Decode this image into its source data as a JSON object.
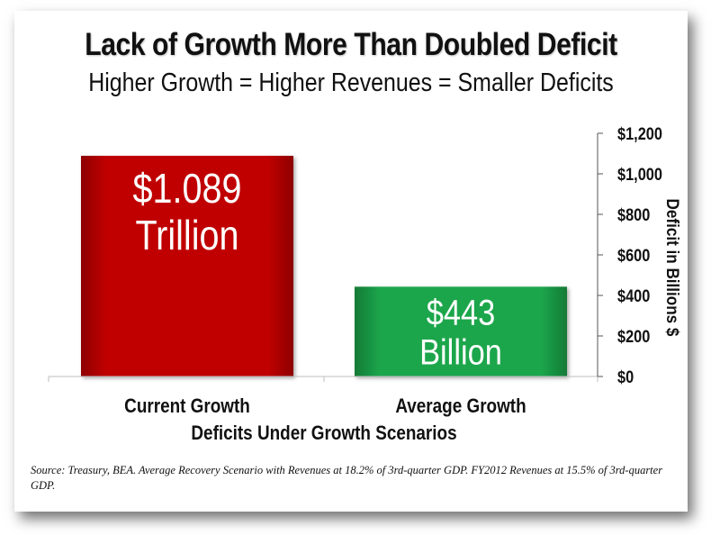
{
  "slide": {
    "title": "Lack of Growth More Than Doubled Deficit",
    "subtitle": "Higher Growth = Higher Revenues = Smaller Deficits",
    "source": "Source: Treasury, BEA.  Average Recovery  Scenario with Revenues at 18.2%  of 3rd-quarter GDP.  FY2012 Revenues at 15.5% of 3rd-quarter GDP."
  },
  "chart_data": {
    "type": "bar",
    "categories": [
      "Current Growth",
      "Average Growth"
    ],
    "values": [
      1089,
      443
    ],
    "data_labels": [
      [
        "$1.089",
        "Trillion"
      ],
      [
        "$443",
        "Billion"
      ]
    ],
    "bar_colors": [
      "#c00000",
      "#1aa34a"
    ],
    "xlabel": "Deficits Under Growth Scenarios",
    "ylabel": "Deficit in Billions $",
    "ylim": [
      0,
      1200
    ],
    "yticks": [
      0,
      200,
      400,
      600,
      800,
      1000,
      1200
    ],
    "ytick_labels": [
      "$0",
      "$200",
      "$400",
      "$600",
      "$800",
      "$1,000",
      "$1,200"
    ],
    "yaxis_position": "right",
    "grid": false,
    "legend": false
  }
}
